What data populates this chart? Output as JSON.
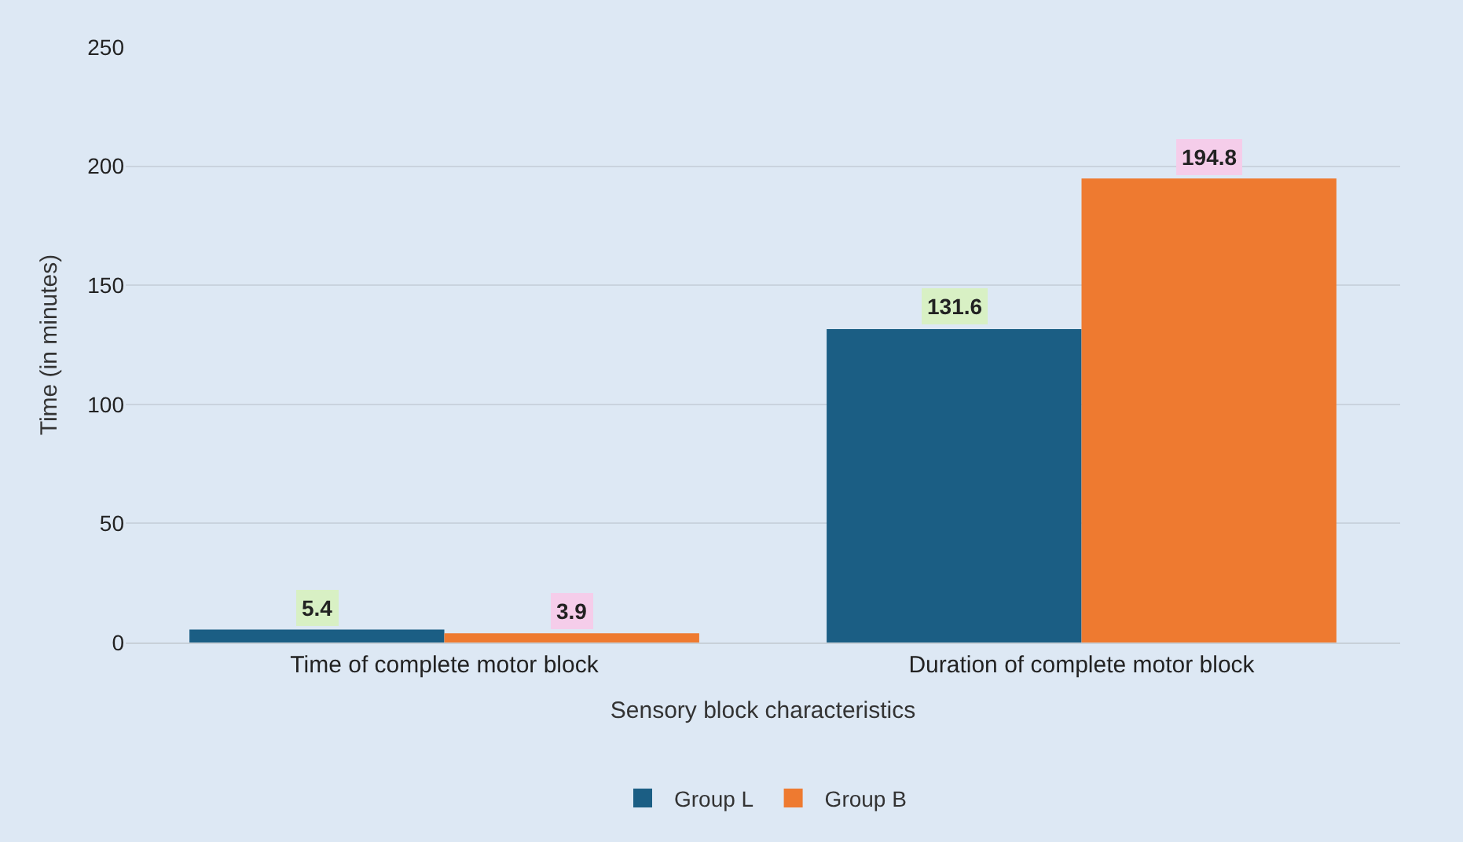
{
  "chart_data": {
    "type": "bar",
    "xlabel": "Sensory block characteristics",
    "ylabel": "Time (in minutes)",
    "categories": [
      "Time of complete motor block",
      "Duration of complete motor block"
    ],
    "series": [
      {
        "name": "Group L",
        "color": "#1b5e84",
        "values": [
          5.4,
          131.6
        ]
      },
      {
        "name": "Group B",
        "color": "#ee7a30",
        "values": [
          3.9,
          194.8
        ]
      }
    ],
    "ylim": [
      0,
      250
    ],
    "yticks": [
      0,
      50,
      100,
      150,
      200,
      250
    ],
    "grid": "y",
    "legend": "bottom",
    "data_labels": true
  }
}
